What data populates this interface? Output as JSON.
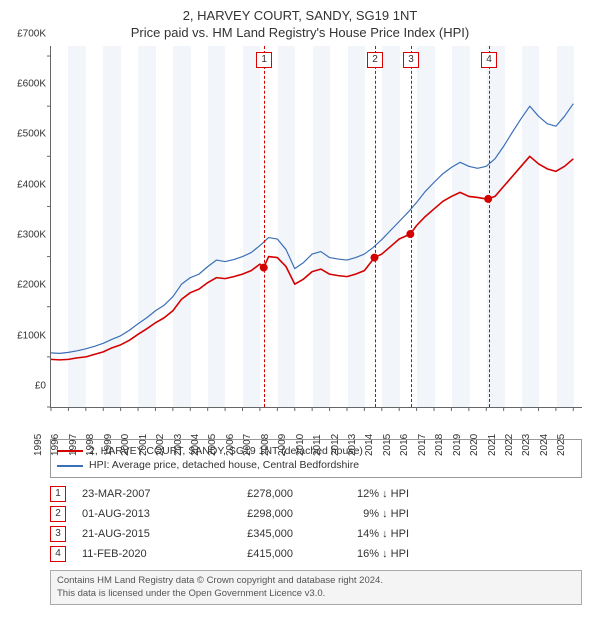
{
  "title_line1": "2, HARVEY COURT, SANDY, SG19 1NT",
  "title_line2": "Price paid vs. HM Land Registry's House Price Index (HPI)",
  "chart": {
    "type": "line",
    "background_color": "#ffffff",
    "band_color": "#f2f6fb",
    "axis_color": "#666666",
    "text_color": "#333333",
    "x_range": [
      1995,
      2025.5
    ],
    "y_range": [
      0,
      720000
    ],
    "y_ticks": [
      0,
      100000,
      200000,
      300000,
      400000,
      500000,
      600000,
      700000
    ],
    "y_tick_labels": [
      "£0",
      "£100K",
      "£200K",
      "£300K",
      "£400K",
      "£500K",
      "£600K",
      "£700K"
    ],
    "x_ticks": [
      1995,
      1996,
      1997,
      1998,
      1999,
      2000,
      2001,
      2002,
      2003,
      2004,
      2005,
      2006,
      2007,
      2008,
      2009,
      2010,
      2011,
      2012,
      2013,
      2014,
      2015,
      2016,
      2017,
      2018,
      2019,
      2020,
      2021,
      2022,
      2023,
      2024,
      2025
    ],
    "series": [
      {
        "name": "price_paid",
        "label": "2, HARVEY COURT, SANDY, SG19 1NT (detached house)",
        "color": "#d40000",
        "width": 1.6,
        "points": [
          [
            1995.0,
            95000
          ],
          [
            1995.5,
            94000
          ],
          [
            1996.0,
            95000
          ],
          [
            1996.5,
            98000
          ],
          [
            1997.0,
            100000
          ],
          [
            1997.5,
            105000
          ],
          [
            1998.0,
            110000
          ],
          [
            1998.5,
            118000
          ],
          [
            1999.0,
            124000
          ],
          [
            1999.5,
            133000
          ],
          [
            2000.0,
            145000
          ],
          [
            2000.5,
            156000
          ],
          [
            2001.0,
            168000
          ],
          [
            2001.5,
            178000
          ],
          [
            2002.0,
            192000
          ],
          [
            2002.5,
            215000
          ],
          [
            2003.0,
            228000
          ],
          [
            2003.5,
            235000
          ],
          [
            2004.0,
            248000
          ],
          [
            2004.5,
            258000
          ],
          [
            2005.0,
            256000
          ],
          [
            2005.5,
            260000
          ],
          [
            2006.0,
            265000
          ],
          [
            2006.5,
            272000
          ],
          [
            2007.0,
            285000
          ],
          [
            2007.22,
            278000
          ],
          [
            2007.5,
            300000
          ],
          [
            2008.0,
            298000
          ],
          [
            2008.5,
            280000
          ],
          [
            2009.0,
            245000
          ],
          [
            2009.5,
            255000
          ],
          [
            2010.0,
            270000
          ],
          [
            2010.5,
            275000
          ],
          [
            2011.0,
            265000
          ],
          [
            2011.5,
            262000
          ],
          [
            2012.0,
            260000
          ],
          [
            2012.5,
            265000
          ],
          [
            2013.0,
            272000
          ],
          [
            2013.58,
            298000
          ],
          [
            2014.0,
            305000
          ],
          [
            2014.5,
            320000
          ],
          [
            2015.0,
            335000
          ],
          [
            2015.64,
            345000
          ],
          [
            2016.0,
            362000
          ],
          [
            2016.5,
            380000
          ],
          [
            2017.0,
            395000
          ],
          [
            2017.5,
            410000
          ],
          [
            2018.0,
            420000
          ],
          [
            2018.5,
            428000
          ],
          [
            2019.0,
            420000
          ],
          [
            2019.5,
            418000
          ],
          [
            2020.0,
            415000
          ],
          [
            2020.11,
            415000
          ],
          [
            2020.5,
            420000
          ],
          [
            2021.0,
            440000
          ],
          [
            2021.5,
            460000
          ],
          [
            2022.0,
            480000
          ],
          [
            2022.5,
            500000
          ],
          [
            2023.0,
            485000
          ],
          [
            2023.5,
            475000
          ],
          [
            2024.0,
            470000
          ],
          [
            2024.5,
            480000
          ],
          [
            2025.0,
            495000
          ]
        ]
      },
      {
        "name": "hpi",
        "label": "HPI: Average price, detached house, Central Bedfordshire",
        "color": "#3b6fb6",
        "width": 1.2,
        "points": [
          [
            1995.0,
            108000
          ],
          [
            1995.5,
            107000
          ],
          [
            1996.0,
            109000
          ],
          [
            1996.5,
            112000
          ],
          [
            1997.0,
            116000
          ],
          [
            1997.5,
            121000
          ],
          [
            1998.0,
            127000
          ],
          [
            1998.5,
            135000
          ],
          [
            1999.0,
            142000
          ],
          [
            1999.5,
            153000
          ],
          [
            2000.0,
            166000
          ],
          [
            2000.5,
            178000
          ],
          [
            2001.0,
            192000
          ],
          [
            2001.5,
            203000
          ],
          [
            2002.0,
            220000
          ],
          [
            2002.5,
            245000
          ],
          [
            2003.0,
            258000
          ],
          [
            2003.5,
            265000
          ],
          [
            2004.0,
            280000
          ],
          [
            2004.5,
            293000
          ],
          [
            2005.0,
            290000
          ],
          [
            2005.5,
            294000
          ],
          [
            2006.0,
            300000
          ],
          [
            2006.5,
            308000
          ],
          [
            2007.0,
            322000
          ],
          [
            2007.5,
            338000
          ],
          [
            2008.0,
            335000
          ],
          [
            2008.5,
            314000
          ],
          [
            2009.0,
            276000
          ],
          [
            2009.5,
            288000
          ],
          [
            2010.0,
            305000
          ],
          [
            2010.5,
            310000
          ],
          [
            2011.0,
            298000
          ],
          [
            2011.5,
            295000
          ],
          [
            2012.0,
            293000
          ],
          [
            2012.5,
            298000
          ],
          [
            2013.0,
            305000
          ],
          [
            2013.5,
            318000
          ],
          [
            2014.0,
            334000
          ],
          [
            2014.5,
            352000
          ],
          [
            2015.0,
            370000
          ],
          [
            2015.5,
            388000
          ],
          [
            2016.0,
            408000
          ],
          [
            2016.5,
            430000
          ],
          [
            2017.0,
            448000
          ],
          [
            2017.5,
            465000
          ],
          [
            2018.0,
            478000
          ],
          [
            2018.5,
            488000
          ],
          [
            2019.0,
            480000
          ],
          [
            2019.5,
            476000
          ],
          [
            2020.0,
            480000
          ],
          [
            2020.5,
            495000
          ],
          [
            2021.0,
            520000
          ],
          [
            2021.5,
            548000
          ],
          [
            2022.0,
            575000
          ],
          [
            2022.5,
            600000
          ],
          [
            2023.0,
            580000
          ],
          [
            2023.5,
            565000
          ],
          [
            2024.0,
            560000
          ],
          [
            2024.5,
            580000
          ],
          [
            2025.0,
            605000
          ]
        ]
      }
    ],
    "sale_markers": [
      {
        "n": 1,
        "x": 2007.22,
        "y": 278000
      },
      {
        "n": 2,
        "x": 2013.58,
        "y": 298000
      },
      {
        "n": 3,
        "x": 2015.64,
        "y": 345000
      },
      {
        "n": 4,
        "x": 2020.11,
        "y": 415000
      }
    ],
    "marker_dash_color": "#d40000",
    "dot_color": "#d40000",
    "dot_radius": 4
  },
  "legend": {
    "items": [
      {
        "color": "#d40000",
        "label": "2, HARVEY COURT, SANDY, SG19 1NT (detached house)"
      },
      {
        "color": "#3b6fb6",
        "label": "HPI: Average price, detached house, Central Bedfordshire"
      }
    ]
  },
  "sales": [
    {
      "n": "1",
      "date": "23-MAR-2007",
      "price": "£278,000",
      "diff": "12% ↓ HPI"
    },
    {
      "n": "2",
      "date": "01-AUG-2013",
      "price": "£298,000",
      "diff": "9% ↓ HPI"
    },
    {
      "n": "3",
      "date": "21-AUG-2015",
      "price": "£345,000",
      "diff": "14% ↓ HPI"
    },
    {
      "n": "4",
      "date": "11-FEB-2020",
      "price": "£415,000",
      "diff": "16% ↓ HPI"
    }
  ],
  "footer_line1": "Contains HM Land Registry data © Crown copyright and database right 2024.",
  "footer_line2": "This data is licensed under the Open Government Licence v3.0."
}
